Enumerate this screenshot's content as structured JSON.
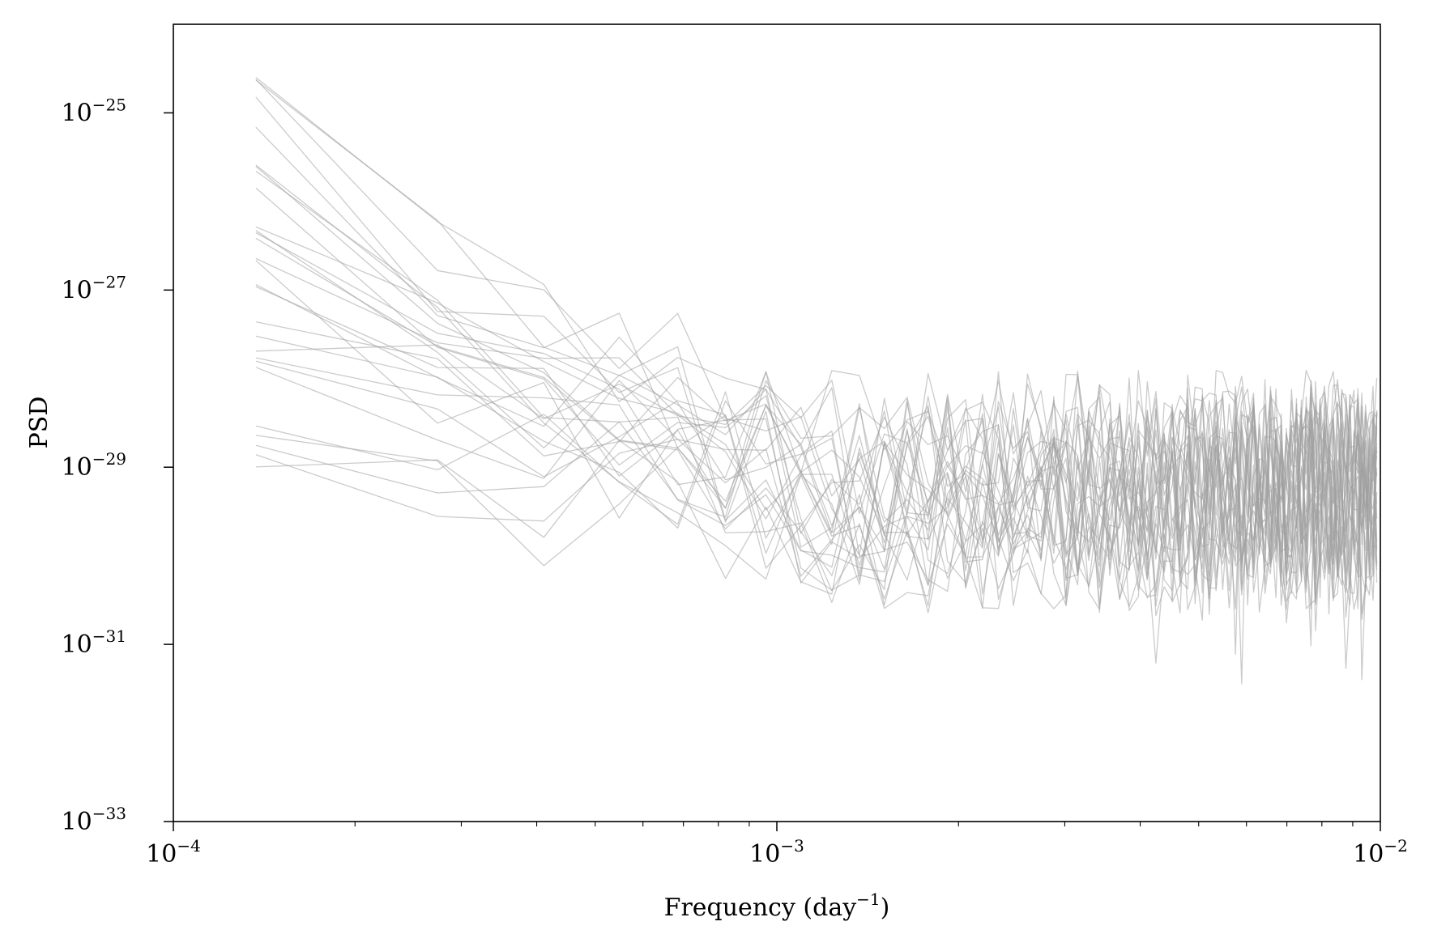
{
  "chart_data": {
    "type": "line",
    "title": "",
    "xlabel": "Frequency (day",
    "xlabel_sup": "−1",
    "xlabel_suffix": ")",
    "ylabel": "PSD",
    "x_scale": "log",
    "y_scale": "log",
    "xlim": [
      0.0001,
      0.01
    ],
    "ylim": [
      1e-33,
      1e-24
    ],
    "grid": false,
    "legend": "none",
    "line_color": "#a0a0a0",
    "x_ticks": [
      {
        "value": 0.0001,
        "base": "10",
        "exp": "−4"
      },
      {
        "value": 0.001,
        "base": "10",
        "exp": "−3"
      },
      {
        "value": 0.01,
        "base": "10",
        "exp": "−2"
      }
    ],
    "y_ticks": [
      {
        "value": 1e-25,
        "base": "10",
        "exp": "−25"
      },
      {
        "value": 1e-27,
        "base": "10",
        "exp": "−27"
      },
      {
        "value": 1e-29,
        "base": "10",
        "exp": "−29"
      },
      {
        "value": 1e-31,
        "base": "10",
        "exp": "−31"
      },
      {
        "value": 1e-33,
        "base": "10",
        "exp": "−33"
      }
    ],
    "frequency_step": 0.000137,
    "series_start_log10_psd": [
      -24.55,
      -24.75,
      -24.8,
      -25.1,
      -25.4,
      -25.65,
      -25.7,
      -25.9,
      -26.1,
      -26.25,
      -26.45,
      -26.6,
      -26.65,
      -26.8,
      -26.85,
      -26.9,
      -27.2,
      -27.3,
      -27.4,
      -27.6,
      -27.6,
      -28.4,
      -28.5,
      -28.8,
      -28.9,
      -29.1,
      -27.5,
      -26.0
    ],
    "series_floor_log10_psd": [
      -29.1,
      -29.3,
      -29.0,
      -29.4,
      -29.2,
      -29.6,
      -29.0,
      -29.5,
      -29.3,
      -29.1,
      -29.4,
      -29.2,
      -29.5,
      -29.0,
      -29.3,
      -29.6,
      -29.2,
      -29.4,
      -29.1,
      -29.3,
      -29.5,
      -29.2,
      -29.4,
      -29.0,
      -29.6,
      -29.3,
      -29.2,
      -29.4
    ]
  }
}
